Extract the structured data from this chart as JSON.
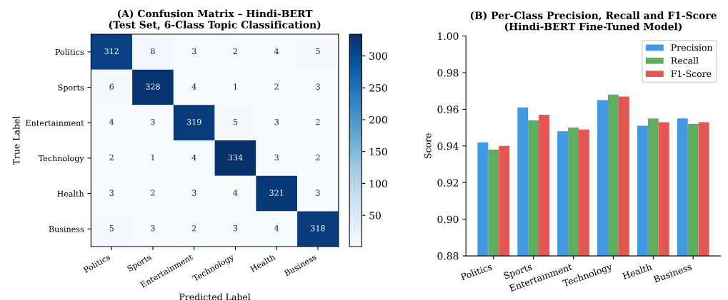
{
  "chart_data": [
    {
      "type": "heatmap",
      "title": "(A) Confusion Matrix – Hindi-BERT\n(Test Set, 6-Class Topic Classification)",
      "xlabel": "Predicted Label",
      "ylabel": "True Label",
      "categories": [
        "Politics",
        "Sports",
        "Entertainment",
        "Technology",
        "Health",
        "Business"
      ],
      "y_categories": [
        "Politics",
        "Sports",
        "Entertainment",
        "Technology",
        "Health",
        "Business"
      ],
      "cells": [
        [
          312,
          8,
          3,
          2,
          4,
          5
        ],
        [
          6,
          328,
          4,
          1,
          2,
          3
        ],
        [
          4,
          3,
          319,
          5,
          3,
          2
        ],
        [
          2,
          1,
          4,
          334,
          3,
          2
        ],
        [
          3,
          2,
          3,
          4,
          321,
          3
        ],
        [
          5,
          3,
          2,
          3,
          4,
          318
        ]
      ],
      "clim": [
        1,
        334
      ],
      "cticks": [
        50,
        100,
        150,
        200,
        250,
        300
      ],
      "data_labels": true
    },
    {
      "type": "bar",
      "title": "(B) Per-Class Precision, Recall and F1-Score\n(Hindi-BERT Fine-Tuned Model)",
      "ylabel": "Score",
      "categories": [
        "Politics",
        "Sports",
        "Entertainment",
        "Technology",
        "Health",
        "Business"
      ],
      "series": [
        {
          "name": "Precision",
          "color": "#4398e4",
          "values": [
            0.942,
            0.961,
            0.948,
            0.965,
            0.951,
            0.955
          ]
        },
        {
          "name": "Recall",
          "color": "#5fae5f",
          "values": [
            0.938,
            0.954,
            0.95,
            0.968,
            0.955,
            0.952
          ]
        },
        {
          "name": "F1-Score",
          "color": "#e55755",
          "values": [
            0.94,
            0.957,
            0.949,
            0.967,
            0.953,
            0.953
          ]
        }
      ],
      "ylim": [
        0.88,
        1.0
      ],
      "yticks": [
        {
          "value": 0.88,
          "label": "0.88"
        },
        {
          "value": 0.9,
          "label": "0.90"
        },
        {
          "value": 0.92,
          "label": "0.92"
        },
        {
          "value": 0.94,
          "label": "0.94"
        },
        {
          "value": 0.96,
          "label": "0.96"
        },
        {
          "value": 0.98,
          "label": "0.98"
        },
        {
          "value": 1.0,
          "label": "1.00"
        }
      ],
      "legend": "top right",
      "grid": false
    }
  ]
}
